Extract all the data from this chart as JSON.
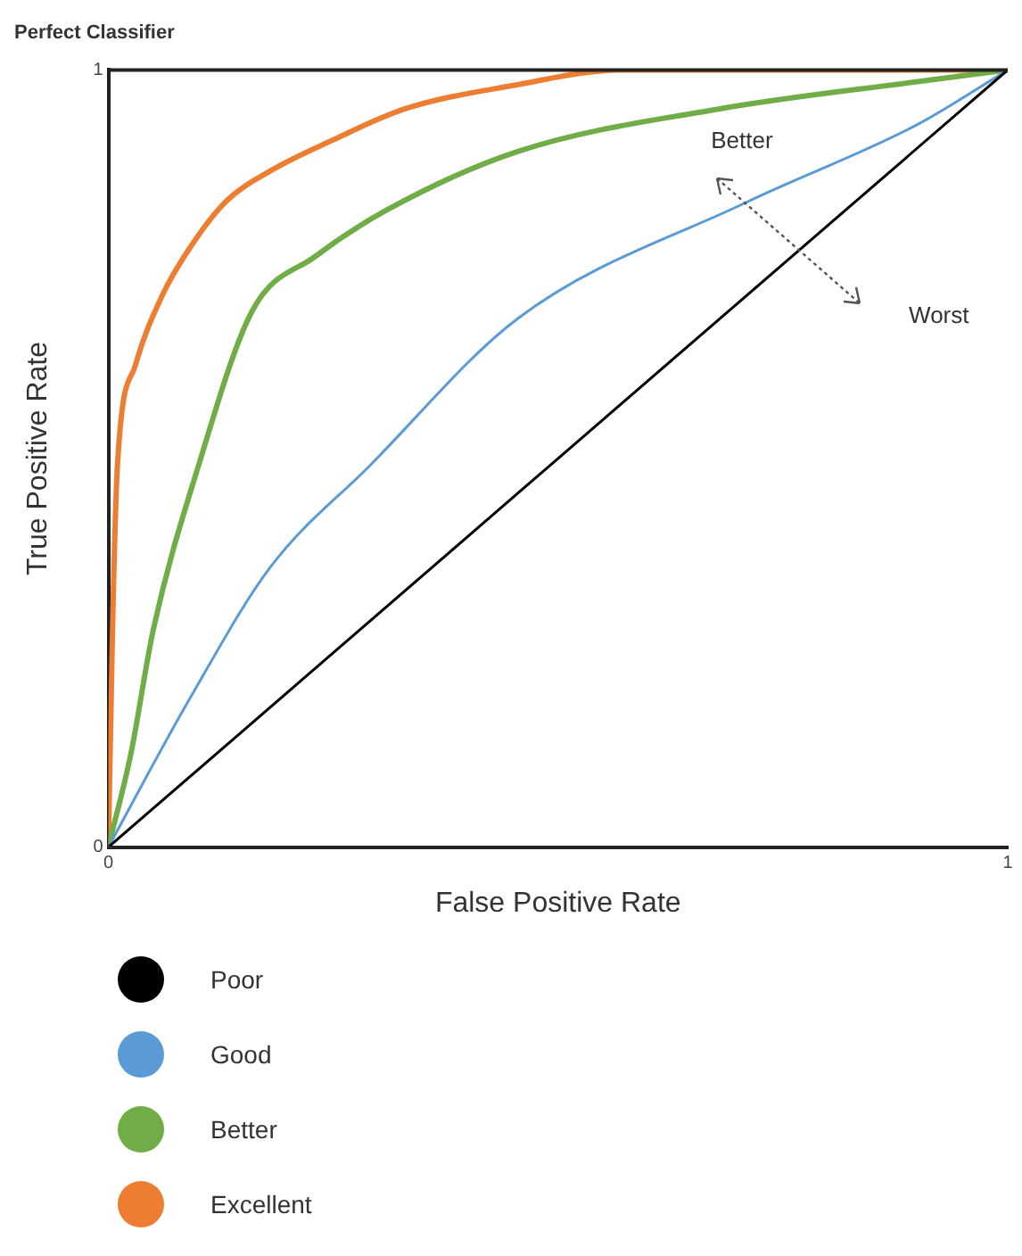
{
  "chart_data": {
    "type": "line",
    "title": "Perfect Classifier",
    "xlabel": "False Positive Rate",
    "ylabel": "True Positive Rate",
    "xlim": [
      0,
      1
    ],
    "xticks": [
      0,
      1
    ],
    "ylim": [
      0,
      1
    ],
    "yticks": [
      0,
      1
    ],
    "grid": false,
    "legend": "bottom",
    "marker": "none",
    "line_style": "solid",
    "annotations": [
      "Better",
      "Worst"
    ],
    "series": [
      {
        "name": "Poor",
        "color": "#000000",
        "x": [
          0,
          1
        ],
        "values": [
          0,
          1
        ]
      },
      {
        "name": "Good",
        "color": "#5b9bd5",
        "x": [
          0,
          0.09,
          0.18,
          0.29,
          0.455,
          0.71,
          0.9,
          1
        ],
        "values": [
          0,
          0.19,
          0.36,
          0.49,
          0.68,
          0.83,
          0.93,
          1
        ]
      },
      {
        "name": "Better",
        "color": "#70ad47",
        "x": [
          0,
          0.025,
          0.05,
          0.1,
          0.16,
          0.23,
          0.31,
          0.455,
          0.68,
          0.9,
          1
        ],
        "values": [
          0,
          0.12,
          0.28,
          0.49,
          0.69,
          0.76,
          0.82,
          0.895,
          0.95,
          0.985,
          1
        ]
      },
      {
        "name": "Excellent",
        "color": "#ed7d31",
        "x": [
          0,
          0.005,
          0.01,
          0.03,
          0.06,
          0.09,
          0.13,
          0.18,
          0.25,
          0.33,
          0.45,
          0.57,
          0.75,
          1
        ],
        "values": [
          0,
          0.3,
          0.49,
          0.62,
          0.71,
          0.77,
          0.83,
          0.87,
          0.91,
          0.95,
          0.98,
          1,
          1,
          1
        ]
      }
    ]
  }
}
